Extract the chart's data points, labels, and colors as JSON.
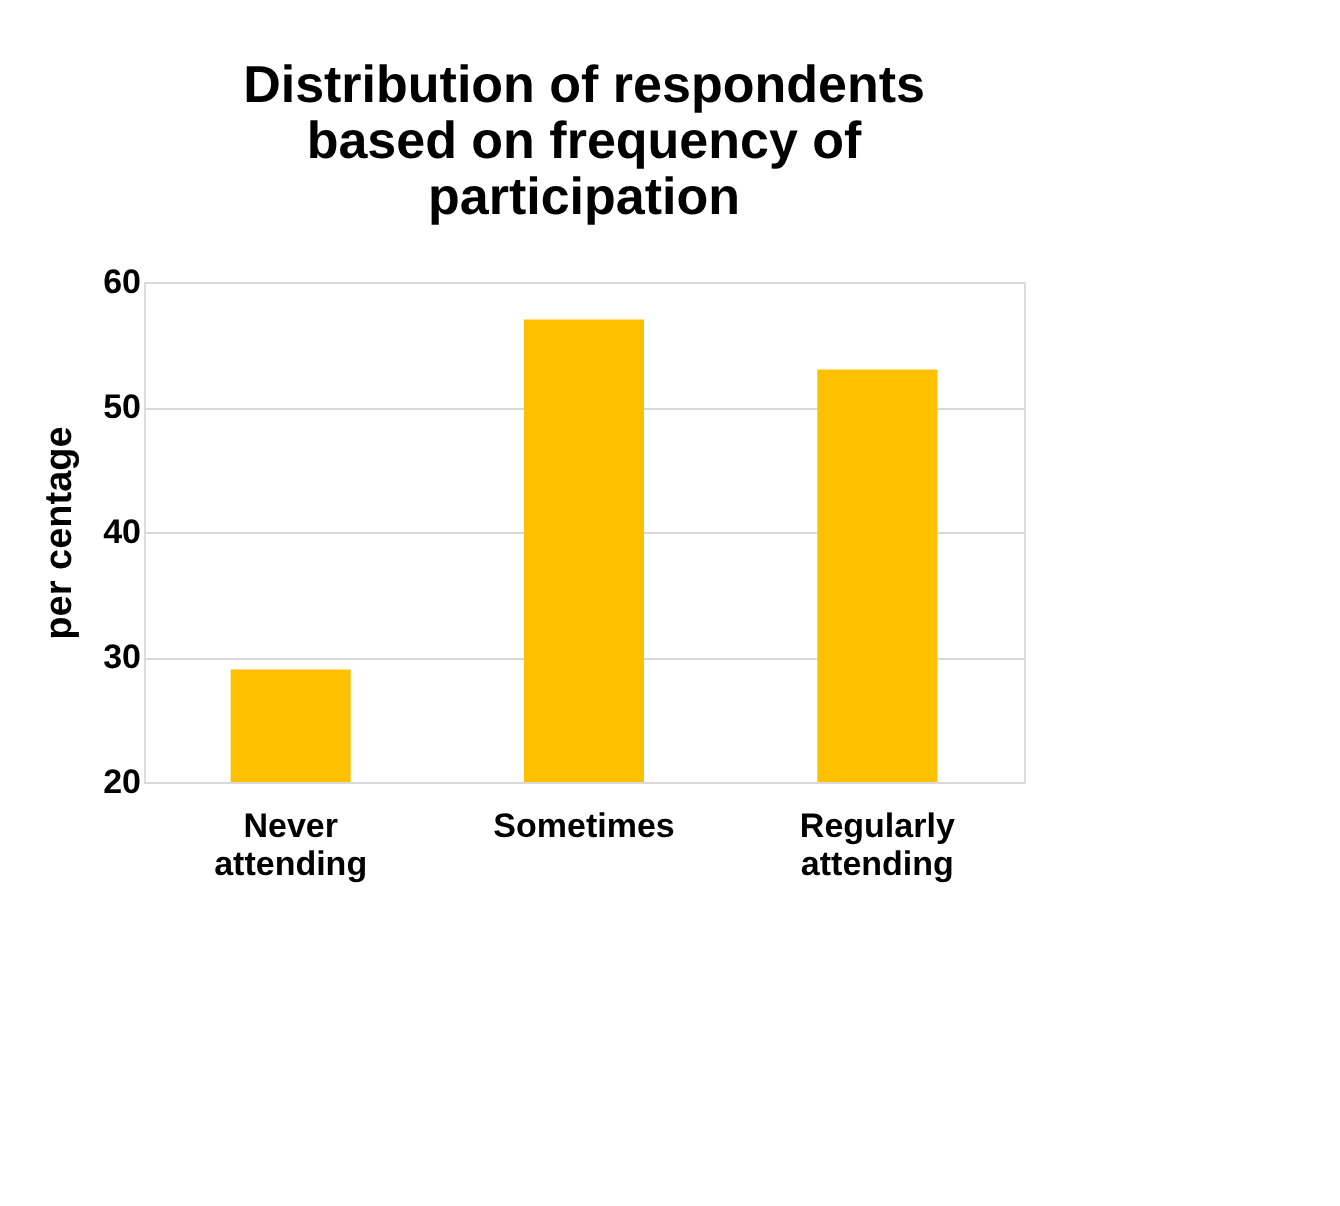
{
  "chart_data": {
    "type": "bar",
    "title": "Distribution of respondents based on frequency of participation",
    "ylabel": "per centage",
    "categories": [
      "Never attending",
      "Sometimes",
      "Regularly attending"
    ],
    "values": [
      29,
      57,
      53
    ],
    "color": "#ffc000",
    "ylim": [
      20,
      60
    ],
    "yticks": [
      20,
      30,
      40,
      50,
      60
    ],
    "grid": "y"
  }
}
